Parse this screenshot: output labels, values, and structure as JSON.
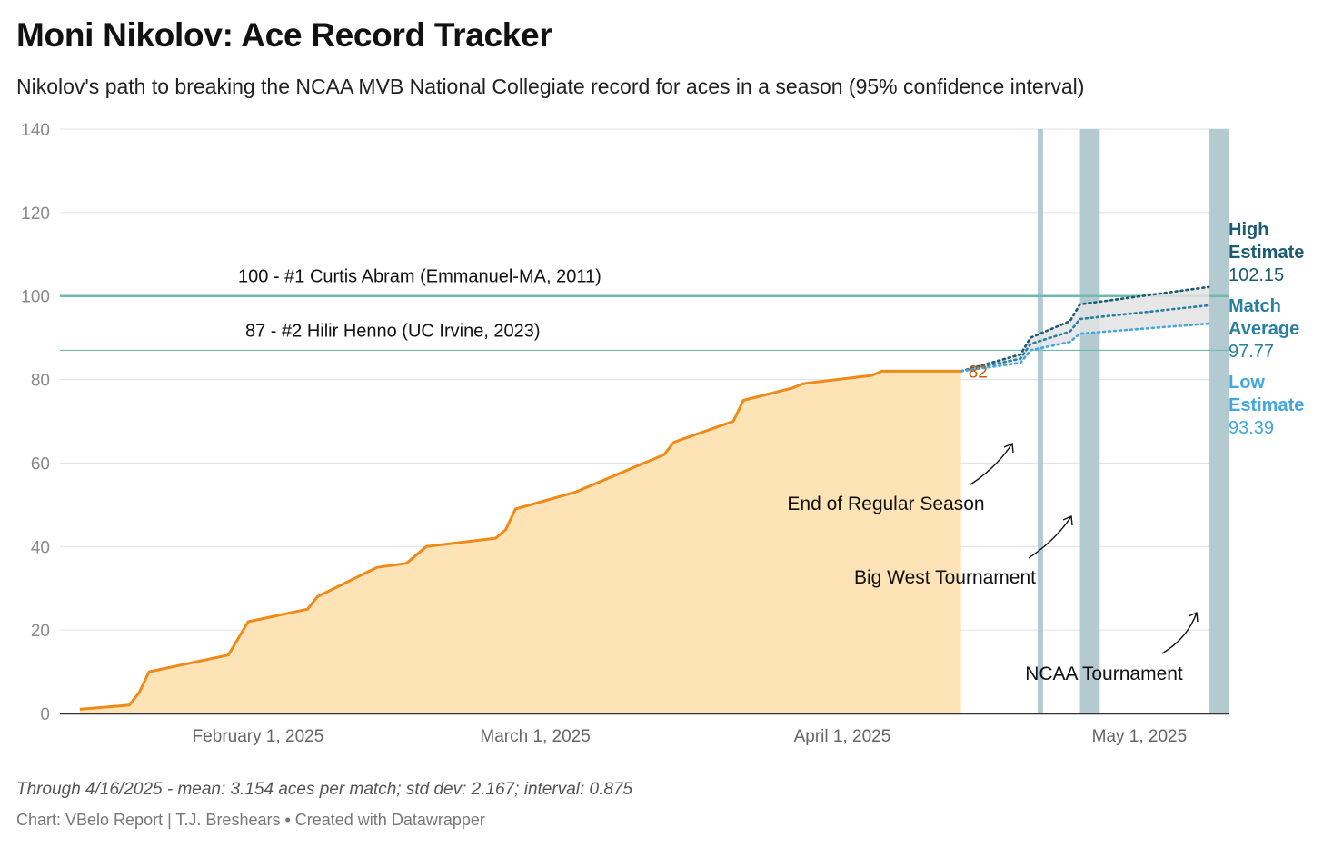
{
  "title": "Moni Nikolov: Ace Record Tracker",
  "subtitle": "Nikolov's path to breaking the NCAA MVB National Collegiate record for aces in a season (95% confidence interval)",
  "footnote": "Through 4/16/2025 - mean: 3.154 aces per match; std dev: 2.167; interval: 0.875",
  "credit": "Chart: VBelo Report | T.J. Breshears • Created with Datawrapper",
  "colors": {
    "actual_line": "#ee8a1a",
    "actual_fill": "#fde3b6",
    "record_line": "#6fb9ad",
    "high": "#1c5b74",
    "average": "#2a7fa5",
    "low": "#41a7dd",
    "band": "#b4cad1",
    "current_label": "#c75b0c",
    "interval_fill": "#e3e3e3"
  },
  "chart_data": {
    "type": "area",
    "ylim": [
      0,
      140
    ],
    "yticks": [
      0,
      20,
      40,
      60,
      80,
      100,
      120,
      140
    ],
    "xlim": [
      "2025-01-12",
      "2025-05-10"
    ],
    "xticks": [
      {
        "date": "2025-02-01",
        "label": "February 1, 2025"
      },
      {
        "date": "2025-03-01",
        "label": "March 1, 2025"
      },
      {
        "date": "2025-04-01",
        "label": "April 1, 2025"
      },
      {
        "date": "2025-05-01",
        "label": "May 1, 2025"
      }
    ],
    "grid": true,
    "actual": {
      "x": [
        "2025-01-14",
        "2025-01-19",
        "2025-01-20",
        "2025-01-21",
        "2025-01-29",
        "2025-01-31",
        "2025-02-06",
        "2025-02-07",
        "2025-02-13",
        "2025-02-16",
        "2025-02-18",
        "2025-02-25",
        "2025-02-26",
        "2025-02-27",
        "2025-03-05",
        "2025-03-14",
        "2025-03-15",
        "2025-03-21",
        "2025-03-22",
        "2025-03-27",
        "2025-03-28",
        "2025-04-04",
        "2025-04-05",
        "2025-04-06",
        "2025-04-13"
      ],
      "y": [
        1,
        2,
        5,
        10,
        14,
        22,
        25,
        28,
        35,
        36,
        40,
        42,
        44,
        49,
        53,
        62,
        65,
        70,
        75,
        78,
        79,
        81,
        82,
        82,
        82
      ],
      "current_label": "82"
    },
    "projection": {
      "x": [
        "2025-04-13",
        "2025-04-19",
        "2025-04-20",
        "2025-04-24",
        "2025-04-25",
        "2025-05-08"
      ],
      "high": [
        82,
        86,
        90,
        94,
        98,
        102.15
      ],
      "average": [
        82,
        85,
        88.5,
        91.5,
        94.5,
        97.77
      ],
      "low": [
        82,
        84,
        87,
        89,
        91,
        93.39
      ]
    },
    "reference_lines": [
      {
        "value": 100,
        "label": "100 - #1 Curtis Abram (Emmanuel-MA, 2011)"
      },
      {
        "value": 87,
        "label": "87 - #2 Hilir Henno (UC Irvine, 2023)"
      }
    ],
    "bands": [
      {
        "start": "2025-04-21",
        "end": "2025-04-21",
        "label": "End of Regular Season"
      },
      {
        "start": "2025-04-25",
        "end": "2025-04-27",
        "label": "Big West Tournament"
      },
      {
        "start": "2025-05-08",
        "end": "2025-05-10",
        "label": "NCAA Tournament"
      }
    ],
    "estimates": [
      {
        "name": "High Estimate",
        "lines": [
          "High",
          "Estimate"
        ],
        "value": "102.15"
      },
      {
        "name": "Match Average",
        "lines": [
          "Match",
          "Average"
        ],
        "value": "97.77"
      },
      {
        "name": "Low Estimate",
        "lines": [
          "Low",
          "Estimate"
        ],
        "value": "93.39"
      }
    ]
  }
}
